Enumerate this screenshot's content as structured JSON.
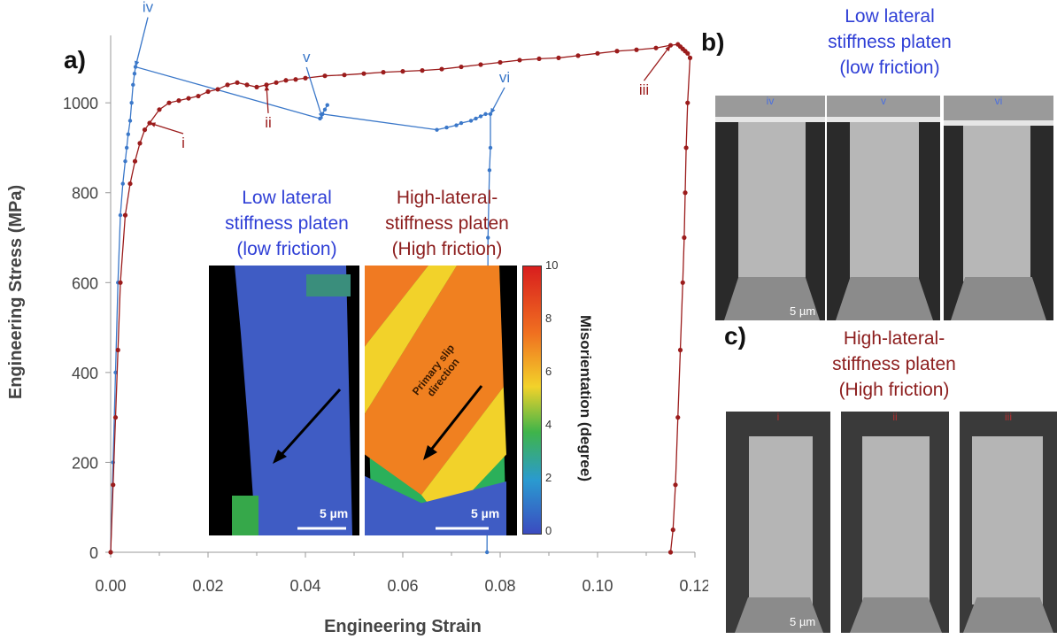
{
  "figure": {
    "panel_a": "a)",
    "panel_b": "b)",
    "panel_c": "c)"
  },
  "chart_data": {
    "type": "scatter",
    "xlabel": "Engineering Strain",
    "ylabel": "Engineering Stress (MPa)",
    "xlim": [
      0,
      0.12
    ],
    "ylim": [
      0,
      1150
    ],
    "xticks": [
      "0.00",
      "0.02",
      "0.04",
      "0.06",
      "0.08",
      "0.10",
      "0.12"
    ],
    "yticks": [
      "0",
      "200",
      "400",
      "600",
      "800",
      "1000"
    ],
    "grid": false,
    "series": [
      {
        "color": "#3b78c9",
        "x": [
          0,
          0.0005,
          0.001,
          0.0015,
          0.002,
          0.0025,
          0.003,
          0.0033,
          0.0036,
          0.004,
          0.0043,
          0.0046,
          0.0049,
          0.0051,
          0.043,
          0.0435,
          0.044,
          0.0445,
          0.0435,
          0.067,
          0.069,
          0.071,
          0.072,
          0.074,
          0.075,
          0.076,
          0.077,
          0.078,
          0.078,
          0.0778,
          0.0775,
          0.0773
        ],
        "y": [
          0,
          200,
          400,
          600,
          750,
          820,
          870,
          900,
          930,
          960,
          1000,
          1040,
          1065,
          1080,
          965,
          975,
          985,
          995,
          975,
          940,
          945,
          950,
          955,
          960,
          965,
          970,
          975,
          975,
          900,
          850,
          700,
          0
        ]
      },
      {
        "color": "#9b1c1c",
        "x": [
          0,
          0.0005,
          0.001,
          0.0015,
          0.002,
          0.003,
          0.004,
          0.005,
          0.006,
          0.007,
          0.008,
          0.01,
          0.012,
          0.014,
          0.016,
          0.018,
          0.02,
          0.022,
          0.024,
          0.026,
          0.028,
          0.03,
          0.032,
          0.034,
          0.036,
          0.038,
          0.04,
          0.044,
          0.048,
          0.052,
          0.056,
          0.06,
          0.064,
          0.068,
          0.072,
          0.076,
          0.08,
          0.084,
          0.088,
          0.092,
          0.096,
          0.1,
          0.104,
          0.108,
          0.112,
          0.115,
          0.1165,
          0.117,
          0.1175,
          0.118,
          0.1185,
          0.119,
          0.1185,
          0.1182,
          0.118,
          0.1178,
          0.1175,
          0.117,
          0.1165,
          0.116,
          0.1155,
          0.115
        ],
        "y": [
          0,
          150,
          300,
          450,
          600,
          750,
          820,
          870,
          910,
          940,
          955,
          985,
          1000,
          1005,
          1010,
          1015,
          1025,
          1030,
          1040,
          1045,
          1040,
          1035,
          1040,
          1045,
          1050,
          1052,
          1055,
          1060,
          1062,
          1065,
          1068,
          1070,
          1072,
          1075,
          1080,
          1085,
          1090,
          1095,
          1098,
          1100,
          1105,
          1110,
          1115,
          1118,
          1122,
          1128,
          1130,
          1125,
          1120,
          1115,
          1110,
          1100,
          1000,
          900,
          800,
          700,
          600,
          450,
          300,
          150,
          50,
          0
        ]
      }
    ],
    "annotations": [
      {
        "text": "iv",
        "x": 0.0051,
        "y": 1080,
        "color": "#3b78c9"
      },
      {
        "text": "v",
        "x": 0.0435,
        "y": 965,
        "color": "#3b78c9"
      },
      {
        "text": "vi",
        "x": 0.078,
        "y": 975,
        "color": "#3b78c9"
      },
      {
        "text": "i",
        "x": 0.008,
        "y": 955,
        "color": "#9b1c1c"
      },
      {
        "text": "ii",
        "x": 0.032,
        "y": 1040,
        "color": "#9b1c1c"
      },
      {
        "text": "iii",
        "x": 0.115,
        "y": 1128,
        "color": "#9b1c1c"
      }
    ]
  },
  "inset": {
    "left_caption": [
      "Low lateral",
      "stiffness platen",
      "(low friction)"
    ],
    "right_caption": [
      "High-lateral-",
      "stiffness platen",
      "(High friction)"
    ],
    "scale_bar": "5 µm",
    "arrow_label": [
      "Primary slip",
      "direction"
    ],
    "colorbar_label": "Misorientation (degree)",
    "colorbar_ticks": [
      "10",
      "8",
      "6",
      "4",
      "2",
      "0"
    ]
  },
  "panel_b": {
    "caption": [
      "Low lateral",
      "stiffness platen",
      "(low friction)"
    ],
    "labels": [
      "iv",
      "v",
      "vi"
    ],
    "scale_bar": "5 µm"
  },
  "panel_c": {
    "caption": [
      "High-lateral-",
      "stiffness platen",
      "(High friction)"
    ],
    "labels": [
      "i",
      "ii",
      "iii"
    ],
    "scale_bar": "5 µm"
  }
}
